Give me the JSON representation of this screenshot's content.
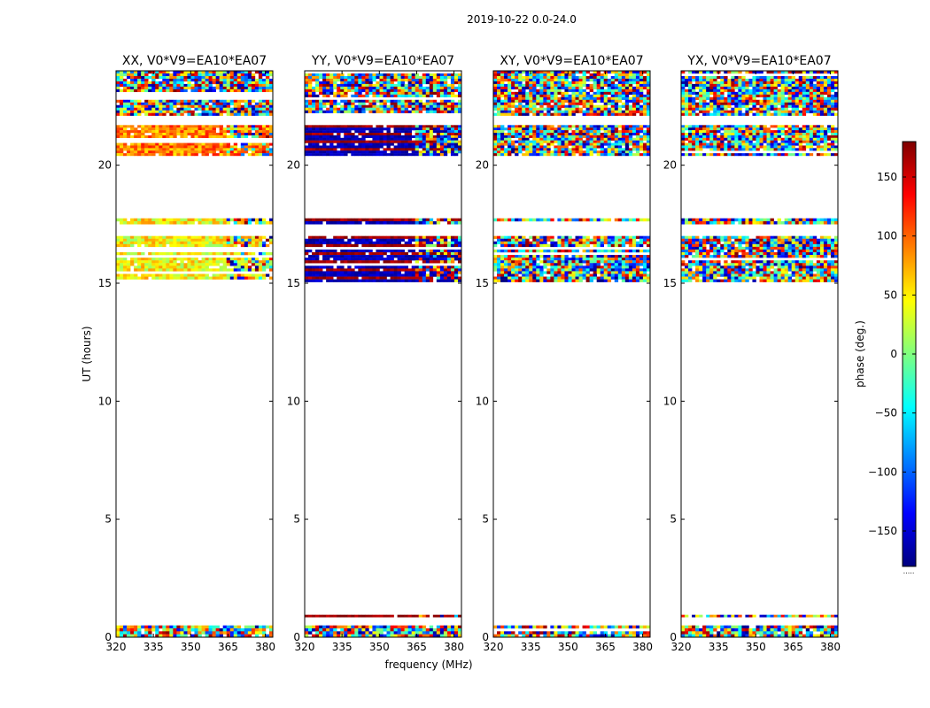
{
  "chart_data": {
    "type": "heatmap",
    "title": "2019-10-22 0.0-24.0",
    "xlabel": "frequency (MHz)",
    "ylabel": "UT (hours)",
    "xlim": [
      320,
      383
    ],
    "ylim": [
      0,
      24
    ],
    "xticks": [
      320,
      335,
      350,
      365,
      380
    ],
    "yticks": [
      0,
      5,
      10,
      15,
      20
    ],
    "colorbar": {
      "label": "phase (deg.)",
      "range": [
        -180,
        180
      ],
      "ticks": [
        150,
        100,
        50,
        0,
        -50,
        -100,
        -150
      ],
      "tick_labels": [
        "150",
        "100",
        "50",
        "0",
        "−50",
        "−100",
        "−150"
      ],
      "colormap": "jet",
      "dots": "....."
    },
    "data_bands_hours": [
      [
        0.0,
        0.5
      ],
      [
        0.85,
        0.95
      ],
      [
        15.05,
        17.0
      ],
      [
        17.5,
        17.75
      ],
      [
        20.4,
        21.7
      ],
      [
        22.1,
        24.0
      ]
    ],
    "panels": [
      {
        "title": "XX, V0*V9=EA10*EA07",
        "pol": "XX"
      },
      {
        "title": "YY, V0*V9=EA10*EA07",
        "pol": "YY"
      },
      {
        "title": "XY, V0*V9=EA10*EA07",
        "pol": "XY"
      },
      {
        "title": "YX, V0*V9=EA10*EA07",
        "pol": "YX"
      }
    ]
  }
}
